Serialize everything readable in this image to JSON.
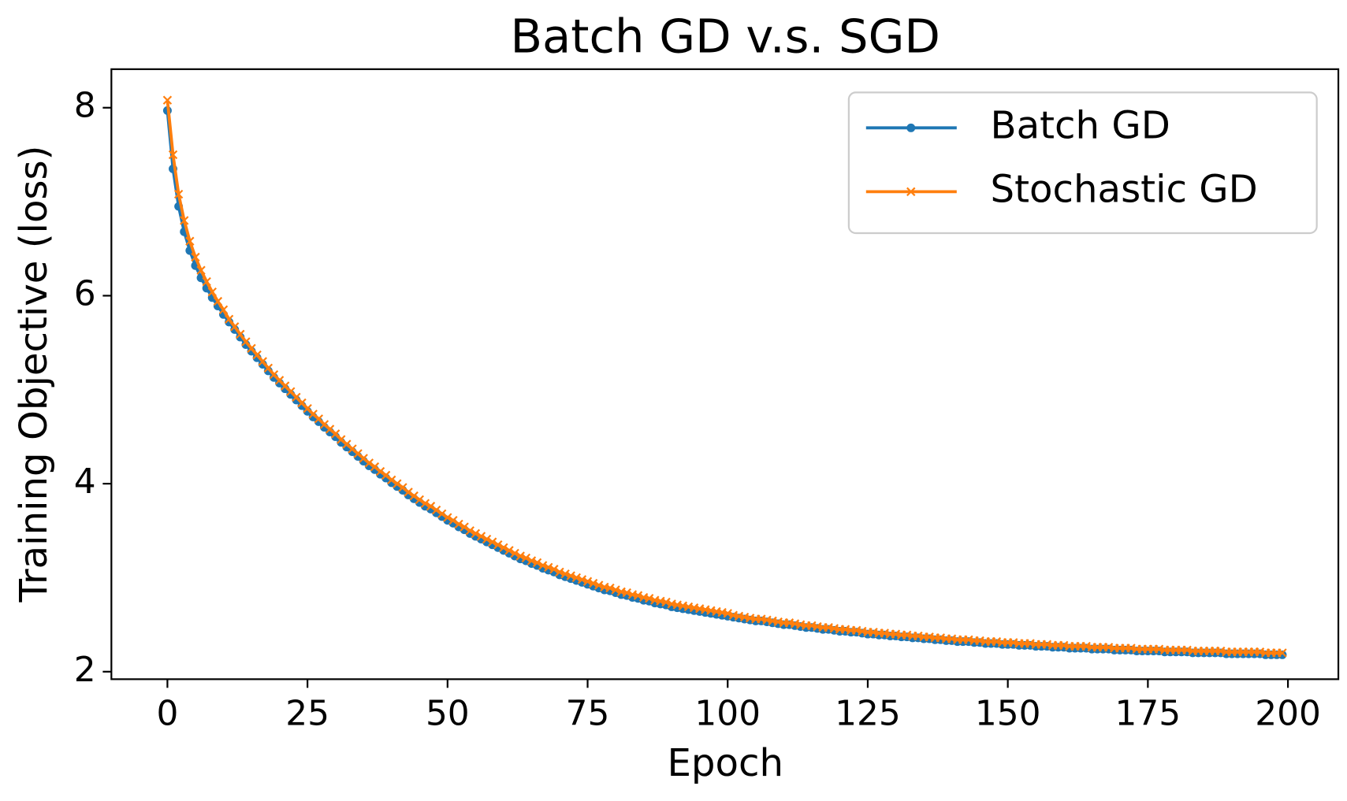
{
  "chart_data": {
    "type": "line",
    "title": "Batch GD v.s. SGD",
    "x_label": "Epoch",
    "y_label": "Training Objective (loss)",
    "x": [
      0,
      1,
      2,
      3,
      4,
      5,
      6,
      7,
      8,
      9,
      10,
      11,
      12,
      13,
      14,
      15,
      16,
      17,
      18,
      19,
      20,
      21,
      22,
      23,
      24,
      25,
      26,
      27,
      28,
      29,
      30,
      31,
      32,
      33,
      34,
      35,
      36,
      37,
      38,
      39,
      40,
      41,
      42,
      43,
      44,
      45,
      46,
      47,
      48,
      49,
      50,
      51,
      52,
      53,
      54,
      55,
      56,
      57,
      58,
      59,
      60,
      61,
      62,
      63,
      64,
      65,
      66,
      67,
      68,
      69,
      70,
      71,
      72,
      73,
      74,
      75,
      76,
      77,
      78,
      79,
      80,
      81,
      82,
      83,
      84,
      85,
      86,
      87,
      88,
      89,
      90,
      91,
      92,
      93,
      94,
      95,
      96,
      97,
      98,
      99,
      100,
      101,
      102,
      103,
      104,
      105,
      106,
      107,
      108,
      109,
      110,
      111,
      112,
      113,
      114,
      115,
      116,
      117,
      118,
      119,
      120,
      121,
      122,
      123,
      124,
      125,
      126,
      127,
      128,
      129,
      130,
      131,
      132,
      133,
      134,
      135,
      136,
      137,
      138,
      139,
      140,
      141,
      142,
      143,
      144,
      145,
      146,
      147,
      148,
      149,
      150,
      151,
      152,
      153,
      154,
      155,
      156,
      157,
      158,
      159,
      160,
      161,
      162,
      163,
      164,
      165,
      166,
      167,
      168,
      169,
      170,
      171,
      172,
      173,
      174,
      175,
      176,
      177,
      178,
      179,
      180,
      181,
      182,
      183,
      184,
      185,
      186,
      187,
      188,
      189,
      190,
      191,
      192,
      193,
      194,
      195,
      196,
      197,
      198,
      199
    ],
    "series": [
      {
        "name": "Batch GD",
        "color": "#1f77b4",
        "marker": "o",
        "values": [
          7.97,
          7.35,
          6.95,
          6.68,
          6.48,
          6.32,
          6.19,
          6.08,
          5.98,
          5.89,
          5.8,
          5.72,
          5.64,
          5.56,
          5.48,
          5.41,
          5.34,
          5.27,
          5.2,
          5.13,
          5.07,
          5.01,
          4.95,
          4.89,
          4.83,
          4.77,
          4.71,
          4.66,
          4.6,
          4.55,
          4.5,
          4.44,
          4.39,
          4.34,
          4.29,
          4.24,
          4.19,
          4.15,
          4.1,
          4.06,
          4.01,
          3.97,
          3.93,
          3.88,
          3.84,
          3.8,
          3.76,
          3.73,
          3.69,
          3.65,
          3.61,
          3.58,
          3.54,
          3.51,
          3.47,
          3.44,
          3.41,
          3.38,
          3.35,
          3.32,
          3.29,
          3.26,
          3.23,
          3.2,
          3.18,
          3.15,
          3.13,
          3.1,
          3.08,
          3.06,
          3.03,
          3.01,
          2.99,
          2.97,
          2.95,
          2.93,
          2.91,
          2.89,
          2.87,
          2.86,
          2.84,
          2.82,
          2.81,
          2.79,
          2.78,
          2.76,
          2.75,
          2.73,
          2.72,
          2.71,
          2.69,
          2.68,
          2.67,
          2.66,
          2.65,
          2.64,
          2.63,
          2.62,
          2.61,
          2.6,
          2.59,
          2.58,
          2.57,
          2.56,
          2.55,
          2.54,
          2.54,
          2.53,
          2.52,
          2.51,
          2.5,
          2.5,
          2.49,
          2.48,
          2.47,
          2.47,
          2.46,
          2.45,
          2.45,
          2.44,
          2.43,
          2.43,
          2.42,
          2.42,
          2.41,
          2.4,
          2.4,
          2.39,
          2.39,
          2.38,
          2.38,
          2.37,
          2.37,
          2.36,
          2.36,
          2.35,
          2.35,
          2.34,
          2.34,
          2.33,
          2.33,
          2.32,
          2.32,
          2.32,
          2.31,
          2.31,
          2.3,
          2.3,
          2.3,
          2.29,
          2.29,
          2.29,
          2.28,
          2.28,
          2.28,
          2.27,
          2.27,
          2.27,
          2.26,
          2.26,
          2.26,
          2.25,
          2.25,
          2.25,
          2.25,
          2.24,
          2.24,
          2.24,
          2.24,
          2.23,
          2.23,
          2.23,
          2.23,
          2.22,
          2.22,
          2.22,
          2.22,
          2.22,
          2.21,
          2.21,
          2.21,
          2.21,
          2.21,
          2.2,
          2.2,
          2.2,
          2.2,
          2.2,
          2.2,
          2.19,
          2.19,
          2.19,
          2.19,
          2.19,
          2.19,
          2.19,
          2.18,
          2.18,
          2.18,
          2.18
        ]
      },
      {
        "name": "Stochastic GD",
        "color": "#ff7f0e",
        "marker": "x",
        "values": [
          8.08,
          7.5,
          7.08,
          6.8,
          6.58,
          6.41,
          6.27,
          6.15,
          6.04,
          5.94,
          5.85,
          5.75,
          5.67,
          5.59,
          5.51,
          5.44,
          5.37,
          5.3,
          5.23,
          5.16,
          5.1,
          5.04,
          4.98,
          4.92,
          4.86,
          4.8,
          4.74,
          4.69,
          4.63,
          4.58,
          4.53,
          4.47,
          4.42,
          4.37,
          4.32,
          4.27,
          4.22,
          4.18,
          4.13,
          4.09,
          4.04,
          4.0,
          3.96,
          3.91,
          3.87,
          3.83,
          3.79,
          3.76,
          3.72,
          3.68,
          3.64,
          3.61,
          3.57,
          3.54,
          3.5,
          3.47,
          3.44,
          3.41,
          3.38,
          3.35,
          3.32,
          3.29,
          3.26,
          3.23,
          3.21,
          3.18,
          3.16,
          3.13,
          3.11,
          3.09,
          3.06,
          3.04,
          3.02,
          3.0,
          2.98,
          2.96,
          2.94,
          2.92,
          2.9,
          2.89,
          2.87,
          2.85,
          2.84,
          2.82,
          2.81,
          2.79,
          2.78,
          2.76,
          2.75,
          2.74,
          2.72,
          2.71,
          2.7,
          2.69,
          2.68,
          2.67,
          2.66,
          2.65,
          2.64,
          2.63,
          2.62,
          2.6,
          2.59,
          2.58,
          2.57,
          2.56,
          2.56,
          2.55,
          2.54,
          2.53,
          2.52,
          2.52,
          2.51,
          2.5,
          2.49,
          2.49,
          2.48,
          2.47,
          2.47,
          2.46,
          2.45,
          2.45,
          2.44,
          2.44,
          2.43,
          2.42,
          2.42,
          2.41,
          2.41,
          2.4,
          2.4,
          2.39,
          2.39,
          2.38,
          2.38,
          2.37,
          2.37,
          2.36,
          2.36,
          2.35,
          2.35,
          2.34,
          2.34,
          2.34,
          2.33,
          2.33,
          2.32,
          2.32,
          2.32,
          2.31,
          2.31,
          2.31,
          2.3,
          2.3,
          2.3,
          2.29,
          2.29,
          2.29,
          2.28,
          2.28,
          2.28,
          2.27,
          2.27,
          2.27,
          2.27,
          2.26,
          2.26,
          2.26,
          2.26,
          2.25,
          2.25,
          2.25,
          2.25,
          2.24,
          2.24,
          2.24,
          2.24,
          2.24,
          2.23,
          2.23,
          2.23,
          2.23,
          2.23,
          2.22,
          2.22,
          2.22,
          2.22,
          2.22,
          2.22,
          2.21,
          2.21,
          2.21,
          2.21,
          2.21,
          2.21,
          2.21,
          2.2,
          2.2,
          2.2,
          2.2
        ]
      }
    ],
    "xlim": [
      -10,
      209
    ],
    "ylim": [
      1.92,
      8.41
    ],
    "xticks": [
      0,
      25,
      50,
      75,
      100,
      125,
      150,
      175,
      200
    ],
    "yticks": [
      2,
      4,
      6,
      8
    ],
    "grid": false,
    "legend": "upper right"
  }
}
